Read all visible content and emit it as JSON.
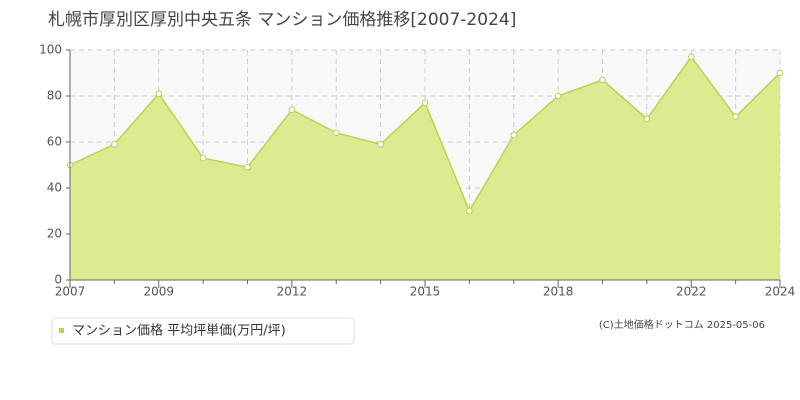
{
  "chart_data": {
    "type": "area",
    "title": "札幌市厚別区厚別中央五条 マンション価格推移[2007-2024]",
    "categories": [
      "2007",
      null,
      "2009",
      null,
      null,
      "2012",
      null,
      null,
      "2015",
      null,
      null,
      "2018",
      null,
      null,
      "2022",
      null,
      "2024"
    ],
    "series": [
      {
        "name": "マンション価格 平均坪単価(万円/坪)",
        "color": "#b5d64a",
        "values": [
          50,
          59,
          81,
          53,
          49,
          74,
          64,
          59,
          77,
          30,
          63,
          80,
          87,
          70,
          97,
          71,
          90
        ]
      }
    ],
    "ylim": [
      0,
      100
    ],
    "yticks": [
      0,
      20,
      40,
      60,
      80,
      100
    ],
    "grid": true,
    "source": "(C)土地価格ドットコム 2025-05-06"
  }
}
